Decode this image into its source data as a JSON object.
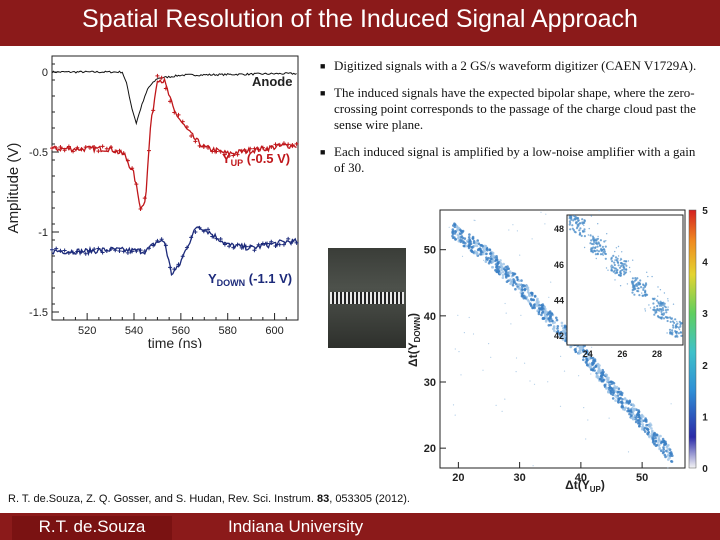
{
  "slide": {
    "title": "Spatial Resolution of the Induced Signal Approach",
    "bullets": [
      "Digitized signals with a 2 GS/s waveform digitizer (CAEN V1729A).",
      "The induced signals have the expected bipolar shape, where the zero-crossing point corresponds to the passage of the charge cloud past the sense wire plane.",
      "Each induced signal is amplified by a low-noise amplifier with a gain of 30."
    ],
    "citation_pre": "R. T. de.Souza, Z. Q. Gosser, and S. Hudan, Rev. Sci. Instrum. ",
    "citation_volume": "83",
    "citation_post": ", 053305 (2012).",
    "footer_left": "R.T. de.Souza",
    "footer_right": "Indiana University",
    "colors": {
      "banner": "#8b1a1a",
      "yup": "#c0171b",
      "ydown": "#1c2a7a"
    }
  },
  "chart_data": [
    {
      "type": "line",
      "xlabel": "time (ns)",
      "ylabel": "Amplitude (V)",
      "xlim": [
        505,
        610
      ],
      "ylim": [
        -1.55,
        0.1
      ],
      "x_ticks": [
        "520",
        "540",
        "560",
        "580",
        "600"
      ],
      "y_ticks": [
        "0",
        "-0.5",
        "-1",
        "-1.5"
      ],
      "series": [
        {
          "name": "Anode",
          "x": [
            505,
            535,
            537,
            539,
            541,
            543,
            546,
            550,
            560,
            605
          ],
          "y": [
            0.0,
            0.0,
            -0.08,
            -0.22,
            -0.32,
            -0.22,
            -0.1,
            -0.04,
            -0.02,
            -0.01
          ]
        },
        {
          "name": "YUP (-0.5 V)",
          "x": [
            505,
            530,
            536,
            540,
            543,
            545,
            547,
            550,
            553,
            557,
            562,
            566,
            570,
            575,
            580,
            590,
            605
          ],
          "y": [
            -0.48,
            -0.48,
            -0.52,
            -0.64,
            -0.86,
            -0.78,
            -0.35,
            -0.04,
            -0.06,
            -0.24,
            -0.35,
            -0.42,
            -0.47,
            -0.49,
            -0.51,
            -0.49,
            -0.46
          ]
        },
        {
          "name": "YDOWN (-1.1 V)",
          "x": [
            505,
            520,
            530,
            545,
            550,
            553,
            556,
            559,
            563,
            567,
            570,
            575,
            580,
            590,
            605
          ],
          "y": [
            -1.12,
            -1.12,
            -1.11,
            -1.12,
            -1.06,
            -1.06,
            -1.26,
            -1.22,
            -1.08,
            -0.96,
            -0.98,
            -1.03,
            -1.08,
            -1.1,
            -1.06
          ]
        }
      ],
      "labels": {
        "anode": "Anode",
        "yup_main": "Y",
        "yup_sub": "UP",
        "yup_value": " (-0.5 V)",
        "ydown_main": "Y",
        "ydown_sub": "DOWN",
        "ydown_value": " (-1.1 V)"
      }
    },
    {
      "type": "heatmap",
      "x_ticks": [
        "20",
        "30",
        "40",
        "50"
      ],
      "y_ticks": [
        "20",
        "30",
        "40",
        "50"
      ],
      "xlim": [
        17,
        57
      ],
      "ylim": [
        17,
        56
      ],
      "xlabel_main": "Δt(Y",
      "xlabel_sub": "UP",
      "xlabel_end": ")",
      "ylabel_main": "Δt(Y",
      "ylabel_sub": "DOWN",
      "ylabel_end": ")",
      "colorbar_ticks": [
        "0",
        "1",
        "2",
        "3",
        "4",
        "5"
      ],
      "band": {
        "x": [
          19,
          25,
          30,
          35,
          40,
          45,
          50,
          55
        ],
        "y": [
          53,
          49,
          44.5,
          39.5,
          35,
          29,
          24,
          18.5
        ]
      },
      "inset": {
        "xlim": [
          22.8,
          29.5
        ],
        "ylim": [
          41.5,
          48.8
        ],
        "x_ticks": [
          "24",
          "26",
          "28"
        ],
        "y_ticks": [
          "42",
          "44",
          "46",
          "48"
        ]
      }
    }
  ]
}
